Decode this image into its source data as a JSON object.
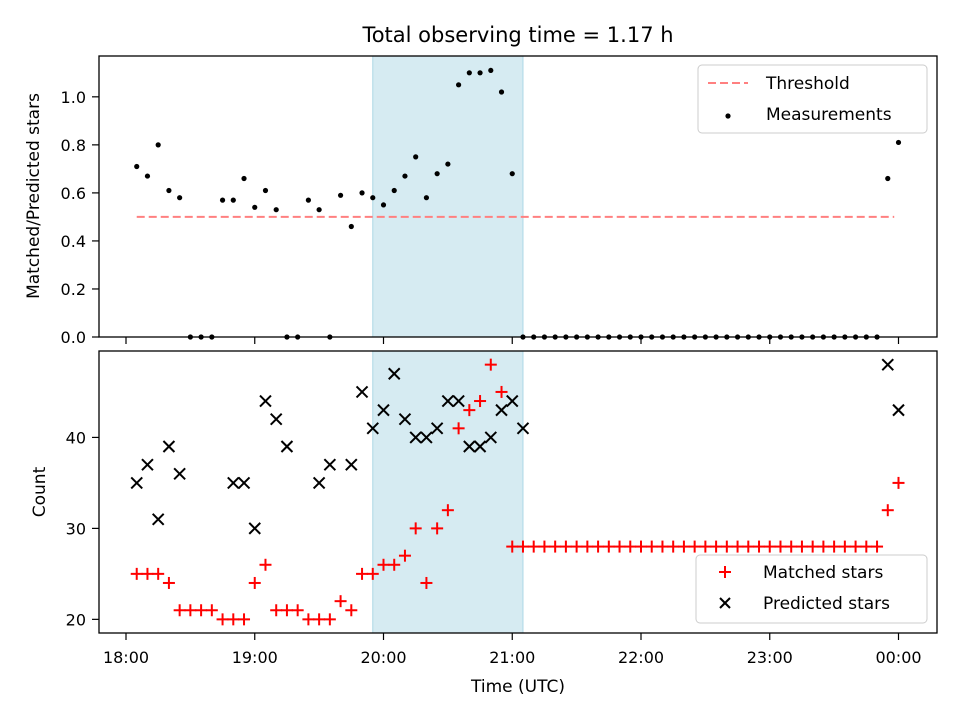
{
  "chart_data": [
    {
      "type": "scatter",
      "title": "Total observing time = 1.17 h",
      "ylabel": "Matched/Predicted stars",
      "xlabel": "",
      "ylim": [
        0,
        1.17
      ],
      "yticks": [
        "0.0",
        "0.2",
        "0.4",
        "0.6",
        "0.8",
        "1.0"
      ],
      "highlight_span": {
        "x": [
          "19:55",
          "21:05"
        ],
        "color": "#add8e6"
      },
      "legend_position": "top-right",
      "threshold": {
        "name": "Threshold",
        "value": 0.5,
        "x": [
          "18:05",
          "23:58"
        ],
        "color": "#ff8080"
      },
      "series": [
        {
          "name": "Measurements",
          "color": "#000000",
          "x": [
            "18:05",
            "18:10",
            "18:15",
            "18:20",
            "18:25",
            "18:30",
            "18:35",
            "18:40",
            "18:45",
            "18:50",
            "18:55",
            "19:00",
            "19:05",
            "19:10",
            "19:15",
            "19:20",
            "19:25",
            "19:30",
            "19:35",
            "19:40",
            "19:45",
            "19:50",
            "19:55",
            "20:00",
            "20:05",
            "20:10",
            "20:15",
            "20:20",
            "20:25",
            "20:30",
            "20:35",
            "20:40",
            "20:45",
            "20:50",
            "20:55",
            "21:00",
            "21:05",
            "21:10",
            "21:15",
            "21:20",
            "21:25",
            "21:30",
            "21:35",
            "21:40",
            "21:45",
            "21:50",
            "21:55",
            "22:00",
            "22:05",
            "22:10",
            "22:15",
            "22:20",
            "22:25",
            "22:30",
            "22:35",
            "22:40",
            "22:45",
            "22:50",
            "22:55",
            "23:00",
            "23:05",
            "23:10",
            "23:15",
            "23:20",
            "23:25",
            "23:30",
            "23:35",
            "23:40",
            "23:45",
            "23:50",
            "23:55",
            "00:00"
          ],
          "y": [
            0.71,
            0.67,
            0.8,
            0.61,
            0.58,
            0.0,
            0.0,
            0.0,
            0.57,
            0.57,
            0.66,
            0.54,
            0.61,
            0.53,
            0.0,
            0.0,
            0.57,
            0.53,
            0.0,
            0.59,
            0.46,
            0.6,
            0.58,
            0.55,
            0.61,
            0.67,
            0.75,
            0.58,
            0.68,
            0.72,
            1.05,
            1.1,
            1.1,
            1.11,
            1.02,
            0.68,
            0.0,
            0.0,
            0.0,
            0.0,
            0.0,
            0.0,
            0.0,
            0.0,
            0.0,
            0.0,
            0.0,
            0.0,
            0.0,
            0.0,
            0.0,
            0.0,
            0.0,
            0.0,
            0.0,
            0.0,
            0.0,
            0.0,
            0.0,
            0.0,
            0.0,
            0.0,
            0.0,
            0.0,
            0.0,
            0.0,
            0.0,
            0.0,
            0.0,
            0.0,
            0.66,
            0.81
          ]
        }
      ]
    },
    {
      "type": "scatter",
      "title": "",
      "xlabel": "Time (UTC)",
      "ylabel": "Count",
      "ylim": [
        18.5,
        49.5
      ],
      "yticks": [
        "20",
        "30",
        "40"
      ],
      "xticks": [
        "18:00",
        "19:00",
        "20:00",
        "21:00",
        "22:00",
        "23:00",
        "00:00"
      ],
      "highlight_span": {
        "x": [
          "19:55",
          "21:05"
        ],
        "color": "#add8e6"
      },
      "legend_position": "bottom-right",
      "series": [
        {
          "name": "Matched stars",
          "marker": "+",
          "color": "#ff0000",
          "x": [
            "18:05",
            "18:10",
            "18:15",
            "18:20",
            "18:25",
            "18:30",
            "18:35",
            "18:40",
            "18:45",
            "18:50",
            "18:55",
            "19:00",
            "19:05",
            "19:10",
            "19:15",
            "19:20",
            "19:25",
            "19:30",
            "19:35",
            "19:40",
            "19:45",
            "19:50",
            "19:55",
            "20:00",
            "20:05",
            "20:10",
            "20:15",
            "20:20",
            "20:25",
            "20:30",
            "20:35",
            "20:40",
            "20:45",
            "20:50",
            "20:55",
            "21:00",
            "21:05",
            "21:10",
            "21:15",
            "21:20",
            "21:25",
            "21:30",
            "21:35",
            "21:40",
            "21:45",
            "21:50",
            "21:55",
            "22:00",
            "22:05",
            "22:10",
            "22:15",
            "22:20",
            "22:25",
            "22:30",
            "22:35",
            "22:40",
            "22:45",
            "22:50",
            "22:55",
            "23:00",
            "23:05",
            "23:10",
            "23:15",
            "23:20",
            "23:25",
            "23:30",
            "23:35",
            "23:40",
            "23:45",
            "23:50",
            "23:55",
            "00:00"
          ],
          "y": [
            25,
            25,
            25,
            24,
            21,
            21,
            21,
            21,
            20,
            20,
            20,
            24,
            26,
            21,
            21,
            21,
            20,
            20,
            20,
            22,
            21,
            25,
            25,
            26,
            26,
            27,
            30,
            24,
            30,
            32,
            41,
            43,
            44,
            48,
            45,
            28,
            28,
            28,
            28,
            28,
            28,
            28,
            28,
            28,
            28,
            28,
            28,
            28,
            28,
            28,
            28,
            28,
            28,
            28,
            28,
            28,
            28,
            28,
            28,
            28,
            28,
            28,
            28,
            28,
            28,
            28,
            28,
            28,
            28,
            28,
            32,
            35
          ]
        },
        {
          "name": "Predicted stars",
          "marker": "x",
          "color": "#000000",
          "x": [
            "18:05",
            "18:10",
            "18:15",
            "18:20",
            "18:25",
            "18:50",
            "18:55",
            "19:00",
            "19:05",
            "19:10",
            "19:15",
            "19:30",
            "19:35",
            "19:45",
            "19:50",
            "19:55",
            "20:00",
            "20:05",
            "20:10",
            "20:15",
            "20:20",
            "20:25",
            "20:30",
            "20:35",
            "20:40",
            "20:45",
            "20:50",
            "20:55",
            "21:00",
            "21:05",
            "23:55",
            "00:00"
          ],
          "y": [
            35,
            37,
            31,
            39,
            36,
            35,
            35,
            30,
            44,
            42,
            39,
            35,
            37,
            37,
            45,
            41,
            43,
            47,
            42,
            40,
            40,
            41,
            44,
            44,
            39,
            39,
            40,
            43,
            44,
            41,
            48,
            43
          ]
        }
      ]
    }
  ]
}
